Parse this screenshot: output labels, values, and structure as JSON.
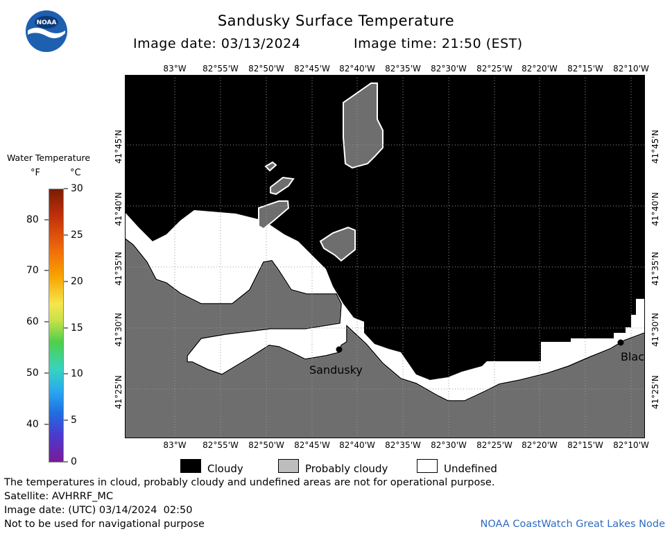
{
  "header": {
    "title": "Sandusky Surface Temperature",
    "image_date": "Image date: 03/13/2024",
    "image_time": "Image time: 21:50 (EST)",
    "logo_text": "NOAA"
  },
  "legend": {
    "title": "Water Temperature",
    "unit_f": "°F",
    "unit_c": "°C",
    "f_ticks": [
      "80",
      "70",
      "60",
      "50",
      "40"
    ],
    "c_ticks": [
      "30",
      "25",
      "20",
      "15",
      "10",
      "5",
      "0"
    ],
    "colors": {
      "hot": "#7a1c05",
      "orange": "#f06a0a",
      "yellow": "#f6e64a",
      "green": "#4fd04a",
      "cyan": "#36d4c0",
      "blue": "#1f6fe0",
      "purple": "#7a1a9a"
    }
  },
  "map": {
    "lon_labels": [
      "83°W",
      "82°55'W",
      "82°50'W",
      "82°45'W",
      "82°40'W",
      "82°35'W",
      "82°30'W",
      "82°25'W",
      "82°20'W",
      "82°15'W",
      "82°10'W"
    ],
    "lat_labels": [
      "41°45'N",
      "41°40'N",
      "41°35'N",
      "41°30'N",
      "41°25'N"
    ],
    "city_sandusky": "Sandusky",
    "city_east": "Blac",
    "colors": {
      "cloudy": "#000000",
      "probably_cloudy": "#6e6e6e",
      "undefined": "#ffffff",
      "grid": "#9a9a9a"
    }
  },
  "key": {
    "cloudy": "Cloudy",
    "probably_cloudy": "Probably cloudy",
    "undefined": "Undefined",
    "probably_cloudy_swatch": "#bdbdbd"
  },
  "footer": {
    "disclaimer": "The temperatures in cloud, probably cloudy and undefined areas are not for operational purpose.",
    "satellite": "Satellite: AVHRRF_MC",
    "utc_date": "Image date: (UTC) 03/14/2024  02:50",
    "nav_warning": "Not to be used for navigational purpose",
    "credit": "NOAA CoastWatch Great Lakes Node"
  }
}
